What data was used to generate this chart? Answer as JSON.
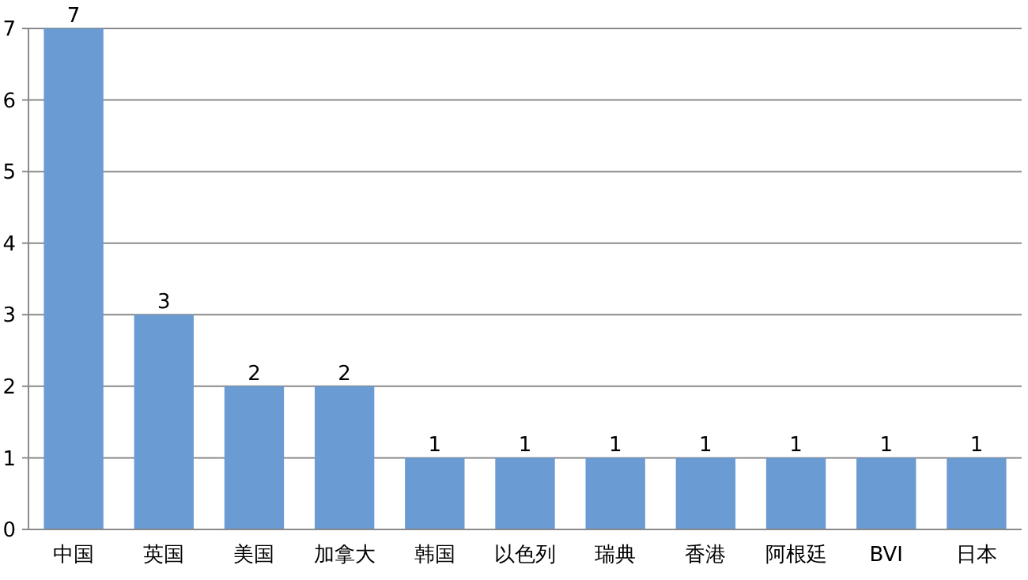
{
  "chart_data": {
    "type": "bar",
    "categories": [
      "中国",
      "英国",
      "美国",
      "加拿大",
      "韩国",
      "以色列",
      "瑞典",
      "香港",
      "阿根廷",
      "BVI",
      "日本"
    ],
    "values": [
      7,
      3,
      2,
      2,
      1,
      1,
      1,
      1,
      1,
      1,
      1
    ],
    "color": "#6a9bd2",
    "ylim": [
      0,
      7
    ],
    "yticks": [
      0,
      1,
      2,
      3,
      4,
      5,
      6,
      7
    ],
    "grid": "y",
    "data_labels": true
  }
}
